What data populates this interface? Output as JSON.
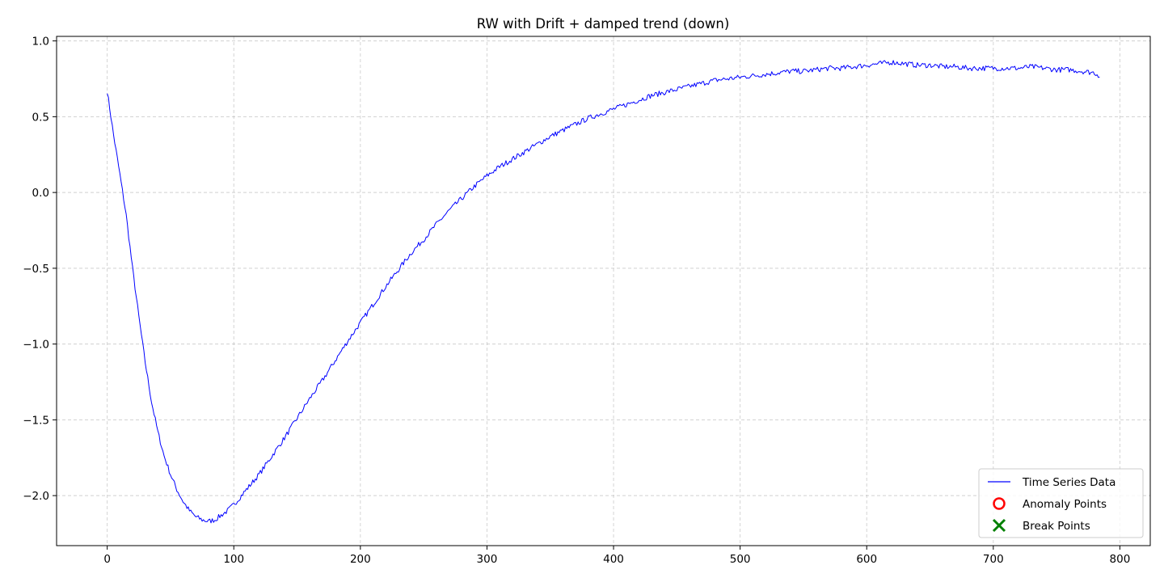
{
  "chart_data": {
    "type": "line",
    "title": "RW with Drift + damped trend (down)",
    "xlabel": "",
    "ylabel": "",
    "xlim": [
      -40,
      824
    ],
    "ylim": [
      -2.33,
      1.03
    ],
    "x_ticks": [
      0,
      100,
      200,
      300,
      400,
      500,
      600,
      700,
      800
    ],
    "y_ticks": [
      1.0,
      0.5,
      0.0,
      -0.5,
      -1.0,
      -1.5,
      -2.0
    ],
    "y_tick_labels": [
      "1.0",
      "0.5",
      "0.0",
      "−0.5",
      "−1.0",
      "−1.5",
      "−2.0"
    ],
    "grid": true,
    "legend_position": "lower right",
    "legend": [
      {
        "label": "Time Series Data",
        "marker": "line",
        "color": "#0000ff"
      },
      {
        "label": "Anomaly Points",
        "marker": "hollow-circle",
        "color": "#ff0000"
      },
      {
        "label": "Break Points",
        "marker": "x",
        "color": "#008000"
      }
    ],
    "series": [
      {
        "name": "Time Series Data",
        "color": "#0000ff",
        "x": [
          0,
          5,
          10,
          15,
          20,
          25,
          30,
          35,
          40,
          45,
          50,
          55,
          60,
          65,
          70,
          75,
          80,
          85,
          90,
          95,
          100,
          110,
          120,
          130,
          140,
          150,
          160,
          170,
          180,
          190,
          200,
          210,
          220,
          230,
          240,
          250,
          260,
          270,
          280,
          290,
          300,
          310,
          320,
          330,
          340,
          350,
          360,
          370,
          380,
          390,
          400,
          410,
          420,
          430,
          440,
          450,
          460,
          470,
          480,
          490,
          500,
          510,
          520,
          530,
          540,
          550,
          560,
          570,
          580,
          590,
          600,
          610,
          620,
          630,
          640,
          650,
          660,
          670,
          680,
          690,
          700,
          710,
          720,
          730,
          740,
          750,
          760,
          770,
          780,
          784
        ],
        "y": [
          0.67,
          0.38,
          0.12,
          -0.15,
          -0.5,
          -0.82,
          -1.12,
          -1.38,
          -1.58,
          -1.74,
          -1.86,
          -1.96,
          -2.04,
          -2.1,
          -2.14,
          -2.16,
          -2.17,
          -2.16,
          -2.13,
          -2.1,
          -2.06,
          -1.96,
          -1.86,
          -1.74,
          -1.62,
          -1.49,
          -1.36,
          -1.24,
          -1.11,
          -0.98,
          -0.86,
          -0.74,
          -0.62,
          -0.51,
          -0.4,
          -0.31,
          -0.21,
          -0.12,
          -0.04,
          0.04,
          0.11,
          0.17,
          0.22,
          0.27,
          0.32,
          0.37,
          0.41,
          0.45,
          0.49,
          0.52,
          0.55,
          0.58,
          0.61,
          0.64,
          0.66,
          0.68,
          0.7,
          0.72,
          0.74,
          0.75,
          0.76,
          0.77,
          0.78,
          0.79,
          0.8,
          0.8,
          0.81,
          0.82,
          0.82,
          0.83,
          0.84,
          0.85,
          0.86,
          0.85,
          0.84,
          0.84,
          0.83,
          0.83,
          0.82,
          0.82,
          0.82,
          0.82,
          0.82,
          0.83,
          0.82,
          0.81,
          0.81,
          0.8,
          0.79,
          0.77
        ]
      }
    ]
  }
}
